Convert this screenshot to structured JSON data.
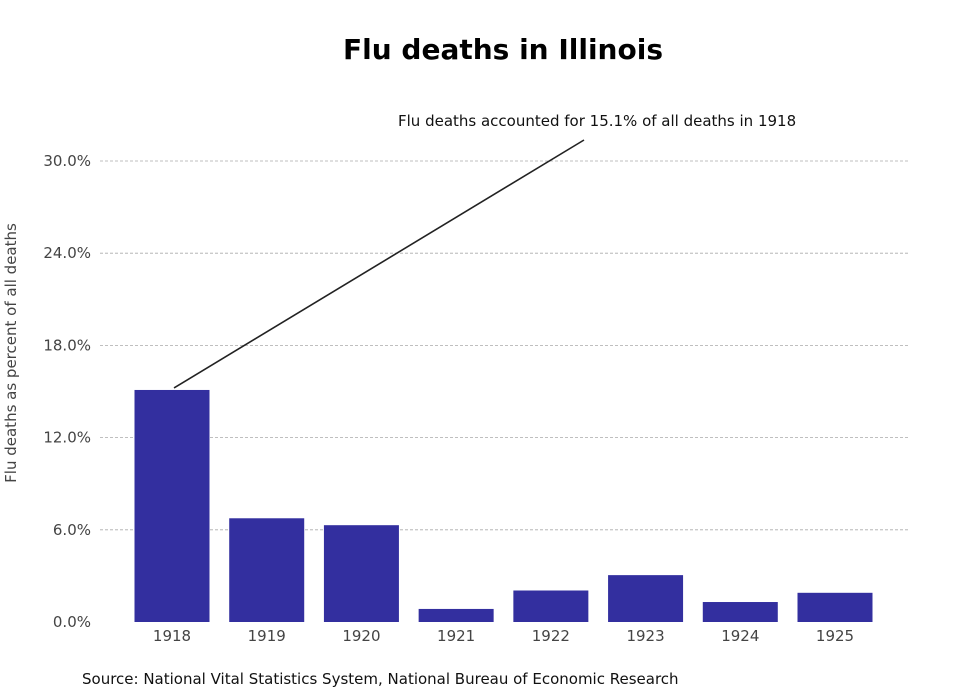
{
  "chart_data": {
    "type": "bar",
    "title": "Flu deaths in Illinois",
    "ylabel": "Flu deaths as percent of all deaths",
    "xlabel": "",
    "categories": [
      "1918",
      "1919",
      "1920",
      "1921",
      "1922",
      "1923",
      "1924",
      "1925"
    ],
    "values": [
      15.1,
      6.75,
      6.3,
      0.85,
      2.05,
      3.05,
      1.3,
      1.9
    ],
    "ylim": [
      0,
      30
    ],
    "yticks": [
      0,
      6,
      12,
      18,
      24,
      30
    ],
    "ytick_labels": [
      "0.0%",
      "6.0%",
      "12.0%",
      "18.0%",
      "24.0%",
      "30.0%"
    ],
    "grid": "horizontal-dashed",
    "bar_color": "#332f9f",
    "annotation": {
      "text": "Flu deaths accounted for 15.1% of all deaths in 1918",
      "category": "1918",
      "value": 15.1
    },
    "source": "Source: National Vital Statistics System, National Bureau of Economic Research"
  }
}
